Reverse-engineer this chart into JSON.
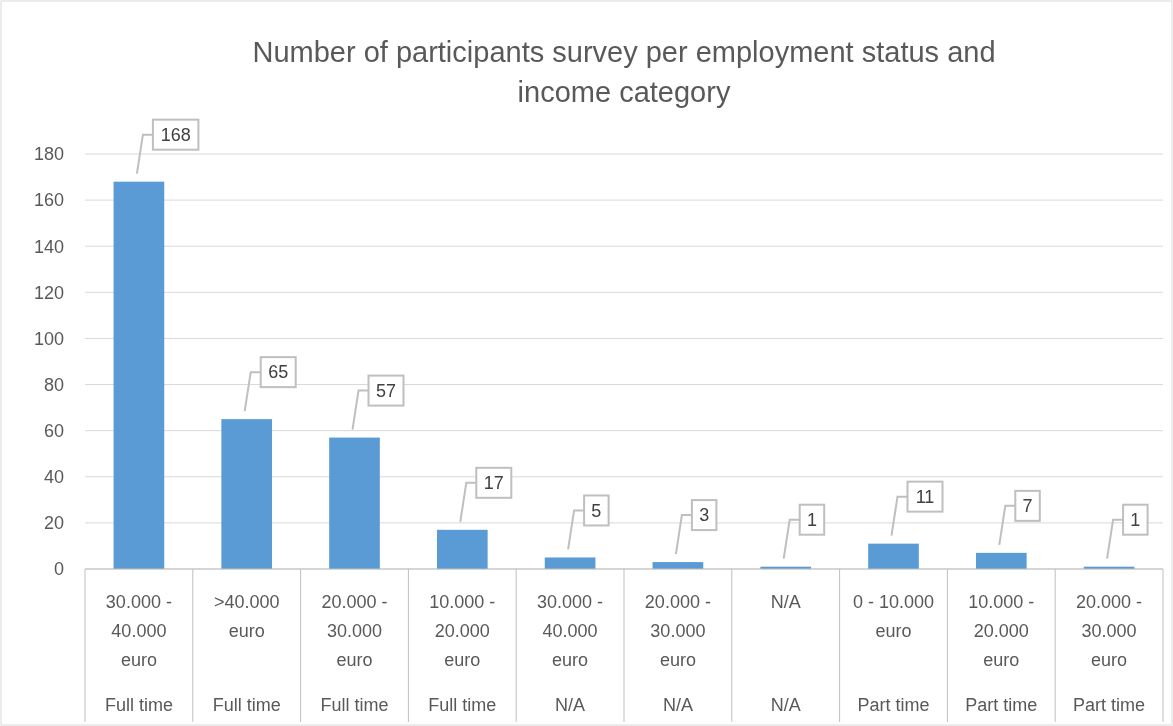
{
  "chart_data": {
    "type": "bar",
    "title": "Number of participants survey per employment status and income category",
    "categories": [
      "30.000 - 40.000 euro\nFull time",
      ">40.000 euro\nFull time",
      "20.000 - 30.000 euro\nFull time",
      "10.000 - 20.000 euro\nFull time",
      "30.000 - 40.000 euro\nN/A",
      "20.000 - 30.000 euro\nN/A",
      "N/A\nN/A",
      "0 - 10.000 euro\nPart time",
      "10.000 - 20.000 euro\nPart time",
      "20.000 - 30.000 euro\nPart time"
    ],
    "values": [
      168,
      65,
      57,
      17,
      5,
      3,
      1,
      11,
      7,
      1
    ],
    "color": "#5b9bd5",
    "ylim": [
      0,
      180
    ],
    "yticks": [
      0,
      20,
      40,
      60,
      80,
      100,
      120,
      140,
      160,
      180
    ],
    "grid": "y",
    "data_labels": true
  }
}
